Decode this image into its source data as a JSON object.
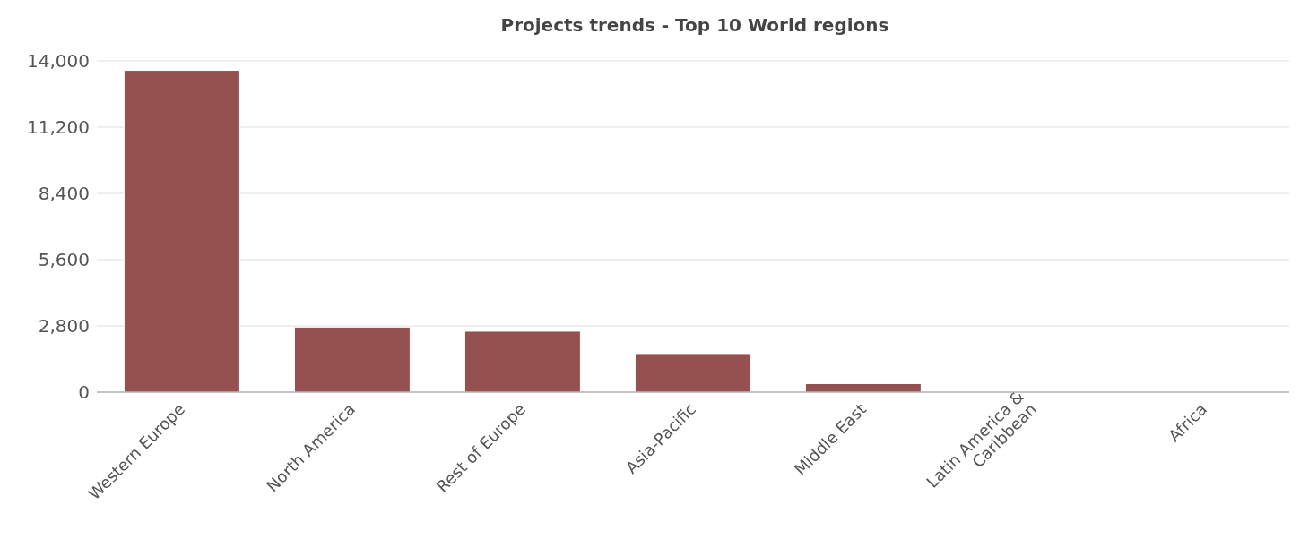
{
  "chart_data": {
    "type": "bar",
    "title": "Projects trends - Top 10 World regions",
    "categories": [
      "Western Europe",
      "North America",
      "Rest of Europe",
      "Asia-Pacific",
      "Middle East",
      "Latin America & Caribbean",
      "Africa"
    ],
    "values": [
      13600,
      2750,
      2575,
      1630,
      360,
      0,
      0
    ],
    "color": "#955050",
    "ylim": [
      0,
      14000
    ],
    "yticks": [
      {
        "value": 0,
        "label": "0"
      },
      {
        "value": 2800,
        "label": "2,800"
      },
      {
        "value": 5600,
        "label": "5,600"
      },
      {
        "value": 8400,
        "label": "8,400"
      },
      {
        "value": 11200,
        "label": "11,200"
      },
      {
        "value": 14000,
        "label": "14,000"
      }
    ],
    "grid": "y"
  }
}
